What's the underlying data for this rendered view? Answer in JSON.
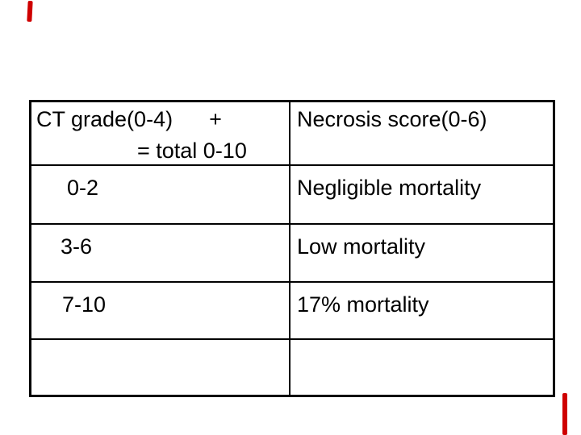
{
  "slide": {
    "background_color": "#ffffff",
    "pen_mark_color": "#cf0000",
    "table": {
      "border_color": "#000000",
      "header": {
        "score_title": "CT grade(0-4)",
        "score_plus": "+",
        "score_total_line": "= total 0-10",
        "mortality_title": "Necrosis score(0-6)"
      },
      "rows": [
        {
          "score_range": "0-2",
          "mortality": "Negligible mortality"
        },
        {
          "score_range": "3-6",
          "mortality": "Low mortality"
        },
        {
          "score_range": "7-10",
          "mortality": "17% mortality"
        },
        {
          "score_range": "",
          "mortality": ""
        }
      ]
    }
  }
}
